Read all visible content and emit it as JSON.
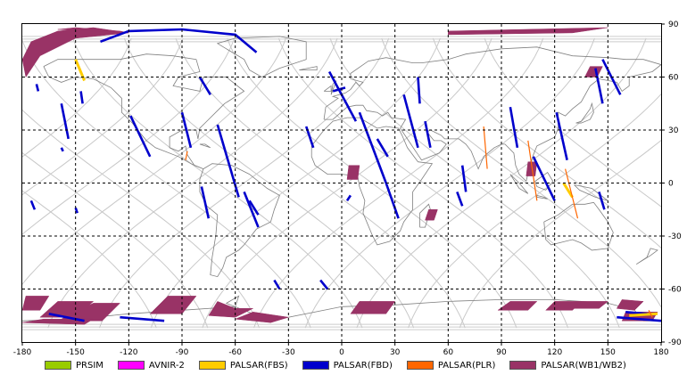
{
  "map": {
    "x_ticks": [
      "-180",
      "-150",
      "-120",
      "-90",
      "-60",
      "-30",
      "0",
      "30",
      "60",
      "90",
      "120",
      "150",
      "180"
    ],
    "y_ticks": [
      "90",
      "60",
      "30",
      "0",
      "-30",
      "-60",
      "-90"
    ],
    "x_tick_values": [
      -180,
      -150,
      -120,
      -90,
      -60,
      -30,
      0,
      30,
      60,
      90,
      120,
      150,
      180
    ],
    "y_tick_values": [
      90,
      60,
      30,
      0,
      -30,
      -60,
      -90
    ]
  },
  "legend": [
    {
      "label": "PRSIM",
      "color": "#99cc00"
    },
    {
      "label": "AVNIR-2",
      "color": "#ff00ff"
    },
    {
      "label": "PALSAR(FBS)",
      "color": "#ffcc00"
    },
    {
      "label": "PALSAR(FBD)",
      "color": "#0000cc"
    },
    {
      "label": "PALSAR(PLR)",
      "color": "#ff6600"
    },
    {
      "label": "PALSAR(WB1/WB2)",
      "color": "#993366"
    }
  ],
  "coverage": {
    "wb": [
      [
        [
          -180,
          70
        ],
        [
          -175,
          80
        ],
        [
          -160,
          86
        ],
        [
          -140,
          88
        ],
        [
          -120,
          85
        ],
        [
          -150,
          82
        ],
        [
          -170,
          72
        ],
        [
          -178,
          60
        ]
      ],
      [
        [
          -120,
          85
        ],
        [
          -160,
          87
        ],
        [
          -150,
          88
        ],
        [
          -125,
          86
        ]
      ],
      [
        [
          60,
          86
        ],
        [
          150,
          88
        ],
        [
          130,
          85
        ],
        [
          60,
          84
        ]
      ],
      [
        [
          140,
          66
        ],
        [
          147,
          66
        ],
        [
          144,
          60
        ],
        [
          137,
          60
        ]
      ],
      [
        [
          4,
          10
        ],
        [
          10,
          10
        ],
        [
          9,
          2
        ],
        [
          3,
          2
        ]
      ],
      [
        [
          105,
          12
        ],
        [
          110,
          12
        ],
        [
          109,
          4
        ],
        [
          104,
          4
        ]
      ],
      [
        [
          49,
          -15
        ],
        [
          54,
          -15
        ],
        [
          52,
          -21
        ],
        [
          47,
          -21
        ]
      ],
      [
        [
          -178,
          -64
        ],
        [
          -165,
          -64
        ],
        [
          -170,
          -72
        ],
        [
          -180,
          -72
        ]
      ],
      [
        [
          -160,
          -67
        ],
        [
          -140,
          -67
        ],
        [
          -150,
          -76
        ],
        [
          -170,
          -76
        ]
      ],
      [
        [
          -140,
          -68
        ],
        [
          -125,
          -68
        ],
        [
          -135,
          -78
        ],
        [
          -160,
          -78
        ]
      ],
      [
        [
          -98,
          -64
        ],
        [
          -82,
          -64
        ],
        [
          -90,
          -74
        ],
        [
          -108,
          -74
        ]
      ],
      [
        [
          -70,
          -67
        ],
        [
          -60,
          -71
        ],
        [
          -50,
          -71
        ],
        [
          -60,
          -76
        ],
        [
          -75,
          -75
        ]
      ],
      [
        [
          -50,
          -73
        ],
        [
          -30,
          -76
        ],
        [
          -40,
          -79
        ],
        [
          -60,
          -77
        ]
      ],
      [
        [
          -168,
          -77
        ],
        [
          -140,
          -77
        ],
        [
          -145,
          -80
        ],
        [
          -180,
          -79
        ]
      ],
      [
        [
          10,
          -67
        ],
        [
          30,
          -67
        ],
        [
          25,
          -74
        ],
        [
          5,
          -74
        ]
      ],
      [
        [
          95,
          -67
        ],
        [
          110,
          -67
        ],
        [
          105,
          -72
        ],
        [
          88,
          -72
        ]
      ],
      [
        [
          120,
          -67
        ],
        [
          135,
          -67
        ],
        [
          130,
          -72
        ],
        [
          115,
          -72
        ]
      ],
      [
        [
          135,
          -67
        ],
        [
          150,
          -67
        ],
        [
          145,
          -71
        ],
        [
          130,
          -71
        ]
      ],
      [
        [
          158,
          -66
        ],
        [
          170,
          -67
        ],
        [
          165,
          -72
        ],
        [
          155,
          -71
        ]
      ],
      [
        [
          160,
          -73
        ],
        [
          178,
          -73
        ],
        [
          175,
          -78
        ],
        [
          158,
          -78
        ]
      ]
    ],
    "fbd": [
      [
        [
          -172,
          56
        ],
        [
          -171,
          52
        ]
      ],
      [
        [
          -158,
          45
        ],
        [
          -154,
          25
        ]
      ],
      [
        [
          -147,
          52
        ],
        [
          -146,
          45
        ]
      ],
      [
        [
          -136,
          80
        ],
        [
          -120,
          86
        ],
        [
          -90,
          87
        ],
        [
          -60,
          84
        ],
        [
          -48,
          74
        ]
      ],
      [
        [
          -119,
          38
        ],
        [
          -108,
          15
        ]
      ],
      [
        [
          -90,
          40
        ],
        [
          -85,
          20
        ]
      ],
      [
        [
          -80,
          60
        ],
        [
          -74,
          50
        ]
      ],
      [
        [
          -70,
          33
        ],
        [
          -58,
          -8
        ]
      ],
      [
        [
          -79,
          -2
        ],
        [
          -75,
          -20
        ]
      ],
      [
        [
          -55,
          -5
        ],
        [
          -47,
          -25
        ]
      ],
      [
        [
          -52,
          -10
        ],
        [
          -47,
          -18
        ]
      ],
      [
        [
          -175,
          -10
        ],
        [
          -173,
          -15
        ]
      ],
      [
        [
          -150,
          -14
        ],
        [
          -149,
          -17
        ]
      ],
      [
        [
          -158,
          20
        ],
        [
          -157,
          18
        ]
      ],
      [
        [
          -38,
          -55
        ],
        [
          -35,
          -60
        ]
      ],
      [
        [
          -12,
          -55
        ],
        [
          -8,
          -60
        ]
      ],
      [
        [
          -20,
          32
        ],
        [
          -16,
          20
        ]
      ],
      [
        [
          -7,
          63
        ],
        [
          8,
          35
        ]
      ],
      [
        [
          10,
          40
        ],
        [
          25,
          0
        ]
      ],
      [
        [
          2,
          54
        ],
        [
          -5,
          52
        ]
      ],
      [
        [
          20,
          25
        ],
        [
          26,
          15
        ]
      ],
      [
        [
          25,
          0
        ],
        [
          32,
          -20
        ]
      ],
      [
        [
          35,
          50
        ],
        [
          43,
          20
        ]
      ],
      [
        [
          43,
          60
        ],
        [
          44,
          45
        ]
      ],
      [
        [
          47,
          35
        ],
        [
          50,
          20
        ]
      ],
      [
        [
          65,
          -5
        ],
        [
          68,
          -13
        ]
      ],
      [
        [
          68,
          10
        ],
        [
          70,
          -5
        ]
      ],
      [
        [
          95,
          43
        ],
        [
          99,
          20
        ]
      ],
      [
        [
          121,
          40
        ],
        [
          127,
          13
        ]
      ],
      [
        [
          143,
          65
        ],
        [
          147,
          45
        ]
      ],
      [
        [
          108,
          15
        ],
        [
          120,
          -10
        ]
      ],
      [
        [
          5,
          -7
        ],
        [
          3,
          -10
        ]
      ],
      [
        [
          145,
          -5
        ],
        [
          148,
          -15
        ]
      ],
      [
        [
          147,
          70
        ],
        [
          157,
          50
        ]
      ],
      [
        [
          155,
          -76
        ],
        [
          180,
          -78
        ]
      ],
      [
        [
          -165,
          -74
        ],
        [
          -145,
          -78
        ]
      ],
      [
        [
          -125,
          -76
        ],
        [
          -100,
          -78
        ]
      ],
      [
        [
          160,
          -73
        ],
        [
          172,
          -74
        ]
      ]
    ],
    "fbs": [
      [
        [
          -150,
          70
        ],
        [
          -145,
          58
        ]
      ],
      [
        [
          125,
          0
        ],
        [
          130,
          -8
        ]
      ],
      [
        [
          162,
          -75
        ],
        [
          178,
          -74
        ]
      ]
    ],
    "plr": [
      [
        [
          -87,
          18
        ],
        [
          -88,
          13
        ]
      ],
      [
        [
          80,
          32
        ],
        [
          82,
          8
        ]
      ],
      [
        [
          105,
          24
        ],
        [
          110,
          -10
        ]
      ],
      [
        [
          126,
          8
        ],
        [
          133,
          -20
        ]
      ],
      [
        [
          173,
          -72
        ],
        [
          175,
          -76
        ]
      ]
    ]
  }
}
